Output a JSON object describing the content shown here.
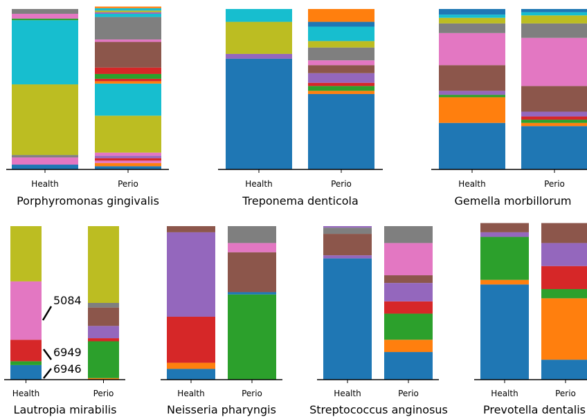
{
  "palette": {
    "blue": "#1f77b4",
    "orange": "#ff7f0e",
    "green": "#2ca02c",
    "red": "#d62728",
    "purple": "#9467bd",
    "brown": "#8c564b",
    "pink": "#e377c2",
    "gray": "#7f7f7f",
    "olive": "#bcbd22",
    "cyan": "#17becf"
  },
  "chart_data": [
    {
      "type": "bar",
      "stacked": true,
      "title": "Porphyromonas gingivalis",
      "categories": [
        "Health",
        "Perio"
      ],
      "ylim": [
        0,
        1
      ],
      "stacks": [
        [
          [
            "blue",
            0.03
          ],
          [
            "pink",
            0.045
          ],
          [
            "gray",
            0.015
          ],
          [
            "olive",
            0.44
          ],
          [
            "cyan",
            0.4
          ],
          [
            "green",
            0.01
          ],
          [
            "pink",
            0.03
          ],
          [
            "gray",
            0.03
          ]
        ],
        [
          [
            "blue",
            0.02
          ],
          [
            "orange",
            0.02
          ],
          [
            "pink",
            0.015
          ],
          [
            "red",
            0.015
          ],
          [
            "purple",
            0.015
          ],
          [
            "pink",
            0.02
          ],
          [
            "olive",
            0.23
          ],
          [
            "cyan",
            0.2
          ],
          [
            "orange",
            0.015
          ],
          [
            "red",
            0.015
          ],
          [
            "green",
            0.03
          ],
          [
            "red",
            0.04
          ],
          [
            "brown",
            0.16
          ],
          [
            "pink",
            0.015
          ],
          [
            "gray",
            0.14
          ],
          [
            "cyan",
            0.02
          ],
          [
            "purple",
            0.01
          ],
          [
            "olive",
            0.01
          ],
          [
            "cyan",
            0.015
          ],
          [
            "orange",
            0.01
          ]
        ]
      ]
    },
    {
      "type": "bar",
      "stacked": true,
      "title": "Treponema denticola",
      "categories": [
        "Health",
        "Perio"
      ],
      "ylim": [
        0,
        1
      ],
      "stacks": [
        [
          [
            "blue",
            0.69
          ],
          [
            "purple",
            0.03
          ],
          [
            "olive",
            0.2
          ],
          [
            "cyan",
            0.08
          ]
        ],
        [
          [
            "blue",
            0.47
          ],
          [
            "orange",
            0.02
          ],
          [
            "green",
            0.03
          ],
          [
            "red",
            0.02
          ],
          [
            "purple",
            0.06
          ],
          [
            "brown",
            0.05
          ],
          [
            "pink",
            0.03
          ],
          [
            "gray",
            0.08
          ],
          [
            "olive",
            0.04
          ],
          [
            "cyan",
            0.09
          ],
          [
            "blue",
            0.03
          ],
          [
            "orange",
            0.08
          ]
        ]
      ]
    },
    {
      "type": "bar",
      "stacked": true,
      "title": "Gemella morbillorum",
      "categories": [
        "Health",
        "Perio"
      ],
      "ylim": [
        0,
        1
      ],
      "stacks": [
        [
          [
            "blue",
            0.29
          ],
          [
            "orange",
            0.16
          ],
          [
            "green",
            0.015
          ],
          [
            "purple",
            0.025
          ],
          [
            "brown",
            0.16
          ],
          [
            "pink",
            0.2
          ],
          [
            "gray",
            0.06
          ],
          [
            "olive",
            0.035
          ],
          [
            "cyan",
            0.02
          ],
          [
            "blue",
            0.035
          ]
        ],
        [
          [
            "blue",
            0.27
          ],
          [
            "orange",
            0.02
          ],
          [
            "green",
            0.02
          ],
          [
            "red",
            0.02
          ],
          [
            "purple",
            0.03
          ],
          [
            "brown",
            0.16
          ],
          [
            "pink",
            0.3
          ],
          [
            "gray",
            0.09
          ],
          [
            "olive",
            0.05
          ],
          [
            "cyan",
            0.02
          ],
          [
            "blue",
            0.02
          ]
        ]
      ]
    },
    {
      "type": "bar",
      "stacked": true,
      "title": "Lautropia mirabilis",
      "categories": [
        "Health",
        "Perio"
      ],
      "ylim": [
        0,
        1
      ],
      "stacks": [
        [
          [
            "blue",
            0.095
          ],
          [
            "green",
            0.025
          ],
          [
            "red",
            0.14
          ],
          [
            "pink",
            0.38
          ],
          [
            "olive",
            0.36
          ]
        ],
        [
          [
            "orange",
            0.01
          ],
          [
            "green",
            0.24
          ],
          [
            "red",
            0.02
          ],
          [
            "purple",
            0.08
          ],
          [
            "brown",
            0.12
          ],
          [
            "gray",
            0.03
          ],
          [
            "olive",
            0.5
          ]
        ]
      ],
      "annotations": [
        "5084",
        "6949",
        "6946"
      ]
    },
    {
      "type": "bar",
      "stacked": true,
      "title": "Neisseria pharyngis",
      "categories": [
        "Health",
        "Perio"
      ],
      "ylim": [
        0,
        1
      ],
      "stacks": [
        [
          [
            "blue",
            0.07
          ],
          [
            "orange",
            0.04
          ],
          [
            "red",
            0.3
          ],
          [
            "purple",
            0.55
          ],
          [
            "brown",
            0.04
          ]
        ],
        [
          [
            "green",
            0.555
          ],
          [
            "blue",
            0.015
          ],
          [
            "brown",
            0.26
          ],
          [
            "pink",
            0.06
          ],
          [
            "gray",
            0.11
          ]
        ]
      ]
    },
    {
      "type": "bar",
      "stacked": true,
      "title": "Streptococcus anginosus",
      "categories": [
        "Health",
        "Perio"
      ],
      "ylim": [
        0,
        1
      ],
      "stacks": [
        [
          [
            "blue",
            0.79
          ],
          [
            "purple",
            0.02
          ],
          [
            "brown",
            0.14
          ],
          [
            "gray",
            0.04
          ],
          [
            "purple",
            0.01
          ]
        ],
        [
          [
            "blue",
            0.18
          ],
          [
            "orange",
            0.08
          ],
          [
            "green",
            0.17
          ],
          [
            "red",
            0.08
          ],
          [
            "purple",
            0.12
          ],
          [
            "brown",
            0.05
          ],
          [
            "pink",
            0.21
          ],
          [
            "gray",
            0.11
          ]
        ]
      ]
    },
    {
      "type": "bar",
      "stacked": true,
      "title": "Prevotella dentalis",
      "categories": [
        "Health",
        "Perio"
      ],
      "ylim": [
        0,
        1
      ],
      "stacks": [
        [
          [
            "blue",
            0.62
          ],
          [
            "orange",
            0.03
          ],
          [
            "green",
            0.28
          ],
          [
            "purple",
            0.03
          ],
          [
            "brown",
            0.06
          ]
        ],
        [
          [
            "blue",
            0.13
          ],
          [
            "orange",
            0.4
          ],
          [
            "green",
            0.06
          ],
          [
            "red",
            0.15
          ],
          [
            "purple",
            0.15
          ],
          [
            "brown",
            0.13
          ]
        ]
      ]
    }
  ]
}
